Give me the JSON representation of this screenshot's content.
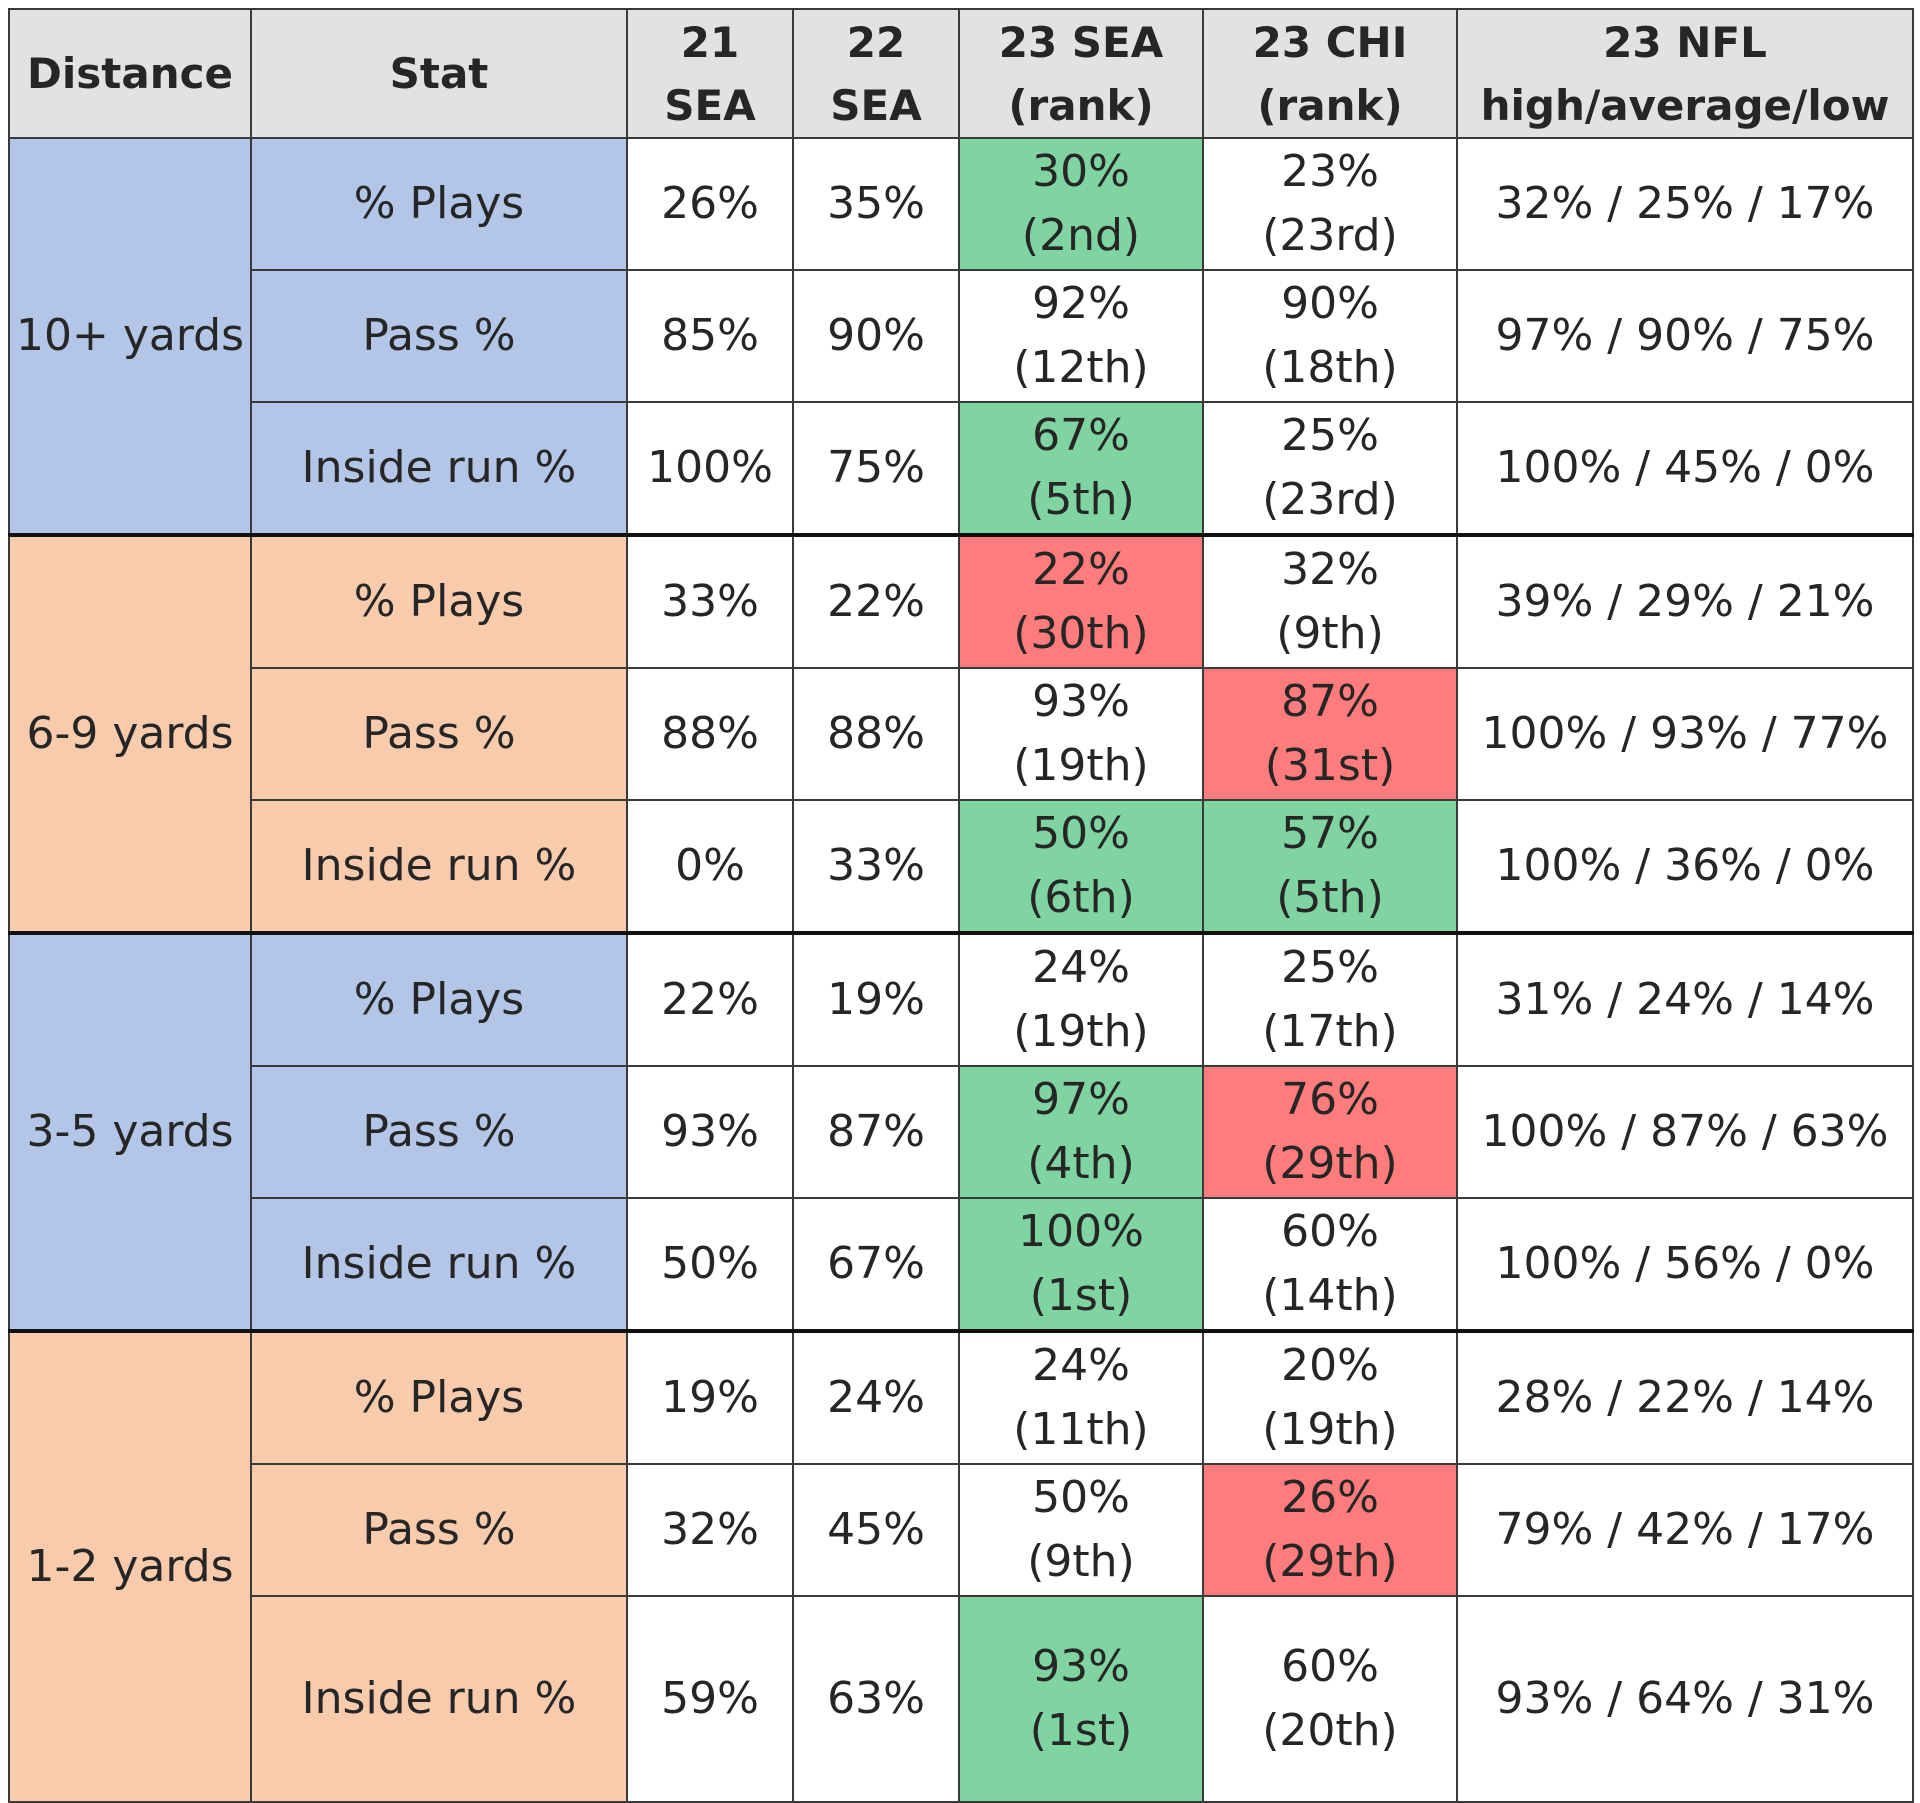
{
  "chart_data": {
    "type": "table",
    "headers": {
      "distance": "Distance",
      "stat": "Stat",
      "sea21": [
        "21",
        "SEA"
      ],
      "sea22": [
        "22",
        "SEA"
      ],
      "sea23": [
        "23 SEA",
        "(rank)"
      ],
      "chi23": [
        "23 CHI",
        "(rank)"
      ],
      "nfl23": [
        "23 NFL",
        "high/average/low"
      ]
    },
    "groups": [
      {
        "distance": "10+ yards",
        "rows": [
          {
            "stat": "% Plays",
            "sea21": "26%",
            "sea22": "35%",
            "sea23": {
              "value": "30%",
              "rank": "(2nd)",
              "highlight": "good"
            },
            "chi23": {
              "value": "23%",
              "rank": "(23rd)",
              "highlight": ""
            },
            "nfl": "32% / 25% / 17%"
          },
          {
            "stat": "Pass %",
            "sea21": "85%",
            "sea22": "90%",
            "sea23": {
              "value": "92%",
              "rank": "(12th)",
              "highlight": ""
            },
            "chi23": {
              "value": "90%",
              "rank": "(18th)",
              "highlight": ""
            },
            "nfl": "97% / 90% / 75%"
          },
          {
            "stat": "Inside run %",
            "sea21": "100%",
            "sea22": "75%",
            "sea23": {
              "value": "67%",
              "rank": "(5th)",
              "highlight": "good"
            },
            "chi23": {
              "value": "25%",
              "rank": "(23rd)",
              "highlight": ""
            },
            "nfl": "100% / 45% / 0%"
          }
        ]
      },
      {
        "distance": "6-9 yards",
        "rows": [
          {
            "stat": "% Plays",
            "sea21": "33%",
            "sea22": "22%",
            "sea23": {
              "value": "22%",
              "rank": "(30th)",
              "highlight": "bad"
            },
            "chi23": {
              "value": "32%",
              "rank": "(9th)",
              "highlight": ""
            },
            "nfl": "39% / 29% / 21%"
          },
          {
            "stat": "Pass %",
            "sea21": "88%",
            "sea22": "88%",
            "sea23": {
              "value": "93%",
              "rank": "(19th)",
              "highlight": ""
            },
            "chi23": {
              "value": "87%",
              "rank": "(31st)",
              "highlight": "bad"
            },
            "nfl": "100% / 93% / 77%"
          },
          {
            "stat": "Inside run %",
            "sea21": "0%",
            "sea22": "33%",
            "sea23": {
              "value": "50%",
              "rank": "(6th)",
              "highlight": "good"
            },
            "chi23": {
              "value": "57%",
              "rank": "(5th)",
              "highlight": "good"
            },
            "nfl": "100% / 36% / 0%"
          }
        ]
      },
      {
        "distance": "3-5 yards",
        "rows": [
          {
            "stat": "% Plays",
            "sea21": "22%",
            "sea22": "19%",
            "sea23": {
              "value": "24%",
              "rank": "(19th)",
              "highlight": ""
            },
            "chi23": {
              "value": "25%",
              "rank": "(17th)",
              "highlight": ""
            },
            "nfl": "31% / 24% / 14%"
          },
          {
            "stat": "Pass %",
            "sea21": "93%",
            "sea22": "87%",
            "sea23": {
              "value": "97%",
              "rank": "(4th)",
              "highlight": "good"
            },
            "chi23": {
              "value": "76%",
              "rank": "(29th)",
              "highlight": "bad"
            },
            "nfl": "100% / 87% / 63%"
          },
          {
            "stat": "Inside run %",
            "sea21": "50%",
            "sea22": "67%",
            "sea23": {
              "value": "100%",
              "rank": "(1st)",
              "highlight": "good"
            },
            "chi23": {
              "value": "60%",
              "rank": "(14th)",
              "highlight": ""
            },
            "nfl": "100% / 56% / 0%"
          }
        ]
      },
      {
        "distance": "1-2 yards",
        "rows": [
          {
            "stat": "% Plays",
            "sea21": "19%",
            "sea22": "24%",
            "sea23": {
              "value": "24%",
              "rank": "(11th)",
              "highlight": ""
            },
            "chi23": {
              "value": "20%",
              "rank": "(19th)",
              "highlight": ""
            },
            "nfl": "28% / 22% / 14%"
          },
          {
            "stat": "Pass %",
            "sea21": "32%",
            "sea22": "45%",
            "sea23": {
              "value": "50%",
              "rank": "(9th)",
              "highlight": ""
            },
            "chi23": {
              "value": "26%",
              "rank": "(29th)",
              "highlight": "bad"
            },
            "nfl": "79% / 42% / 17%"
          },
          {
            "stat": "Inside run %",
            "sea21": "59%",
            "sea22": "63%",
            "sea23": {
              "value": "93%",
              "rank": "(1st)",
              "highlight": "good"
            },
            "chi23": {
              "value": "60%",
              "rank": "(20th)",
              "highlight": ""
            },
            "nfl": "93% / 64% / 31%"
          }
        ]
      }
    ],
    "group_colors": [
      "blue",
      "peach",
      "blue",
      "peach"
    ],
    "colors": {
      "blue": "#b4c6e7",
      "peach": "#f8cbad",
      "good": "#7fd4a2",
      "bad": "#ff7c7c",
      "header": "#e2e2e2"
    }
  }
}
